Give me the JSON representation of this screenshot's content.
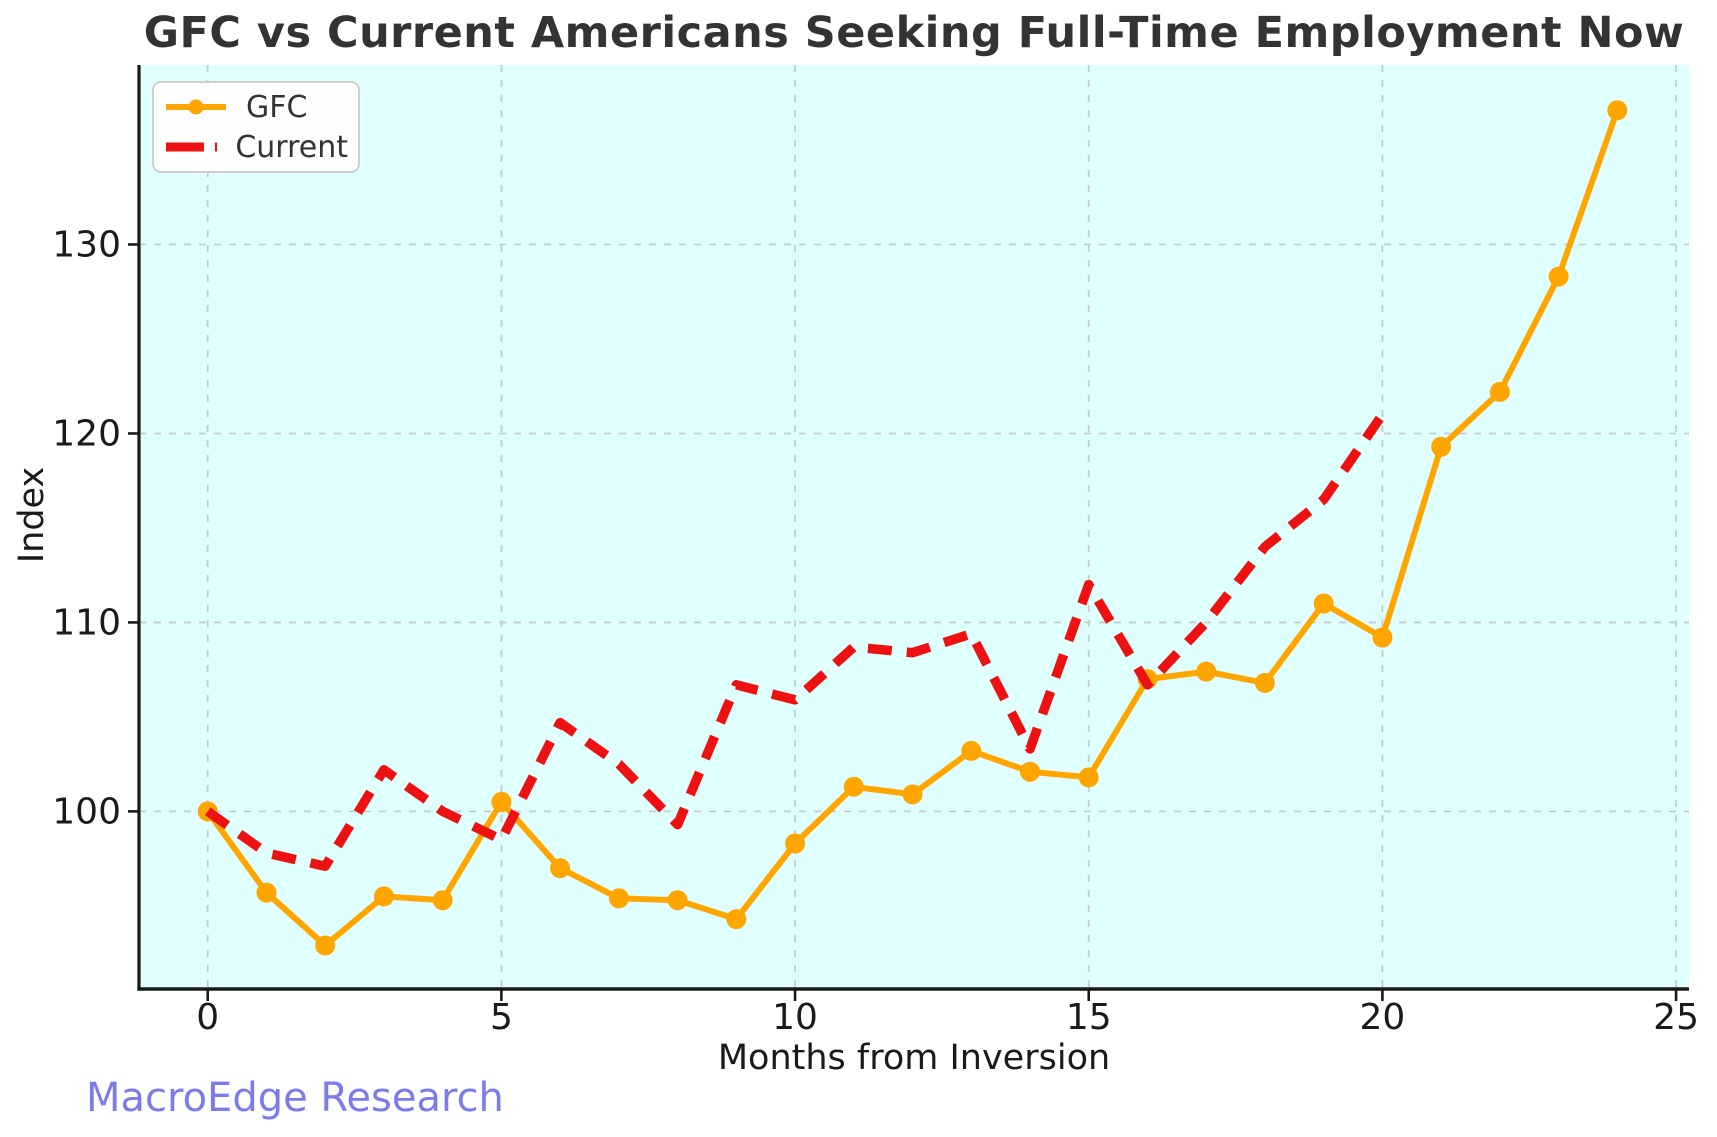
{
  "watermark": "MacroEdge Research",
  "colors": {
    "figure_bg": "#ffffff",
    "plot_bg": "#e0ffff",
    "grid": "#c3cdd0",
    "spine": "#1a1a1a",
    "tick_label": "#1a1a1a",
    "title": "#333333",
    "watermark": "#7b7bee",
    "gfc": "#ffa500",
    "current": "#ee1111",
    "legend_border": "#cfcfcf",
    "legend_bg": "#ffffff"
  },
  "chart_data": {
    "type": "line",
    "title": "GFC vs Current Americans Seeking Full-Time Employment Now",
    "xlabel": "Months from Inversion",
    "ylabel": "Index",
    "xlim": [
      -1.17,
      25.22
    ],
    "ylim": [
      90.6,
      139.5
    ],
    "x_ticks": [
      0,
      5,
      10,
      15,
      20,
      25
    ],
    "y_ticks": [
      100,
      110,
      120,
      130
    ],
    "grid": true,
    "legend_position": "upper left",
    "series": [
      {
        "name": "GFC",
        "color": "#ffa500",
        "line_style": "solid",
        "marker": "circle",
        "line_width": 6,
        "x": [
          0,
          1,
          2,
          3,
          4,
          5,
          6,
          7,
          8,
          9,
          10,
          11,
          12,
          13,
          14,
          15,
          16,
          17,
          18,
          19,
          20,
          21,
          22,
          23,
          24
        ],
        "values": [
          100,
          95.7,
          92.9,
          95.5,
          95.3,
          100.5,
          97.0,
          95.4,
          95.3,
          94.3,
          98.3,
          101.3,
          100.9,
          103.2,
          102.1,
          101.8,
          107.0,
          107.4,
          106.8,
          111.0,
          109.2,
          119.3,
          122.2,
          128.3,
          137.1
        ]
      },
      {
        "name": "Current",
        "color": "#ee1111",
        "line_style": "dashed",
        "marker": "none",
        "line_width": 9.5,
        "x": [
          0,
          1,
          2,
          3,
          4,
          5,
          6,
          7,
          8,
          9,
          10,
          11,
          12,
          13,
          14,
          15,
          16,
          17,
          18,
          19,
          20
        ],
        "values": [
          100,
          97.8,
          97.1,
          102.2,
          100.0,
          98.5,
          104.7,
          102.5,
          99.3,
          106.7,
          105.9,
          108.7,
          108.4,
          109.4,
          103.3,
          112.0,
          106.7,
          110.0,
          114.0,
          116.5,
          121.0
        ]
      }
    ]
  }
}
